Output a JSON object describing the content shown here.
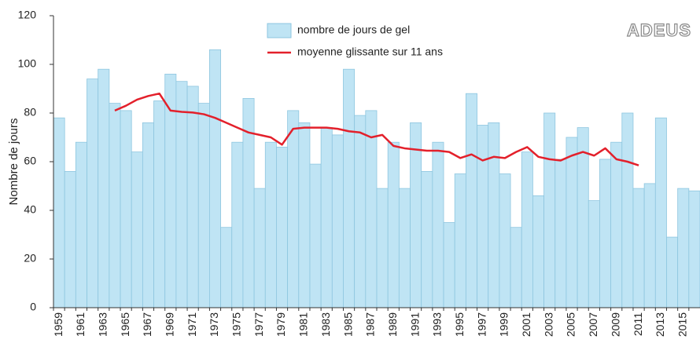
{
  "chart_data": {
    "type": "bar",
    "logo": "ADEUS",
    "y_label": "Nombre de jours",
    "categories": [
      "1959",
      null,
      "1961",
      null,
      "1963",
      null,
      "1965",
      null,
      "1967",
      null,
      "1969",
      null,
      "1971",
      null,
      "1973",
      null,
      "1975",
      null,
      "1977",
      null,
      "1979",
      null,
      "1981",
      null,
      "1983",
      null,
      "1985",
      null,
      "1987",
      null,
      "1989",
      null,
      "1991",
      null,
      "1993",
      null,
      "1995",
      null,
      "1997",
      null,
      "1999",
      null,
      "2001",
      null,
      "2003",
      null,
      "2005",
      null,
      "2007",
      null,
      "2009",
      null,
      "2011",
      null,
      "2013",
      null,
      "2015",
      null
    ],
    "series": [
      {
        "name": "nombre de jours de gel",
        "type": "bar",
        "color": "#bfe4f4",
        "values": [
          78,
          56,
          68,
          94,
          98,
          84,
          81,
          64,
          76,
          85,
          96,
          93,
          91,
          84,
          106,
          33,
          68,
          86,
          49,
          68,
          66,
          81,
          76,
          59,
          74,
          71,
          98,
          79,
          81,
          49,
          68,
          49,
          76,
          56,
          68,
          35,
          55,
          88,
          75,
          76,
          55,
          33,
          64,
          46,
          80,
          61,
          70,
          74,
          44,
          61,
          68,
          80,
          49,
          51,
          78,
          29,
          49,
          48
        ]
      },
      {
        "name": "moyenne glissante sur 11 ans",
        "type": "line",
        "color": "#e3202b",
        "values": [
          null,
          null,
          null,
          null,
          null,
          81,
          83,
          85.5,
          87,
          88,
          81,
          80.5,
          80.2,
          79.5,
          78,
          76,
          74,
          72,
          71,
          70,
          67,
          73.5,
          74,
          74,
          74,
          73.5,
          72.5,
          72,
          70,
          71,
          66.5,
          65.5,
          65,
          64.5,
          64.5,
          64,
          61.5,
          63,
          60.5,
          62,
          61.5,
          64,
          66,
          62,
          61,
          60.5,
          62.5,
          64,
          62.5,
          65.5,
          61,
          60,
          58.5,
          null,
          null,
          null,
          null,
          null
        ]
      }
    ],
    "ylim": [
      0,
      120
    ],
    "yticks": [
      0,
      20,
      40,
      60,
      80,
      100,
      120
    ],
    "grid": false
  }
}
